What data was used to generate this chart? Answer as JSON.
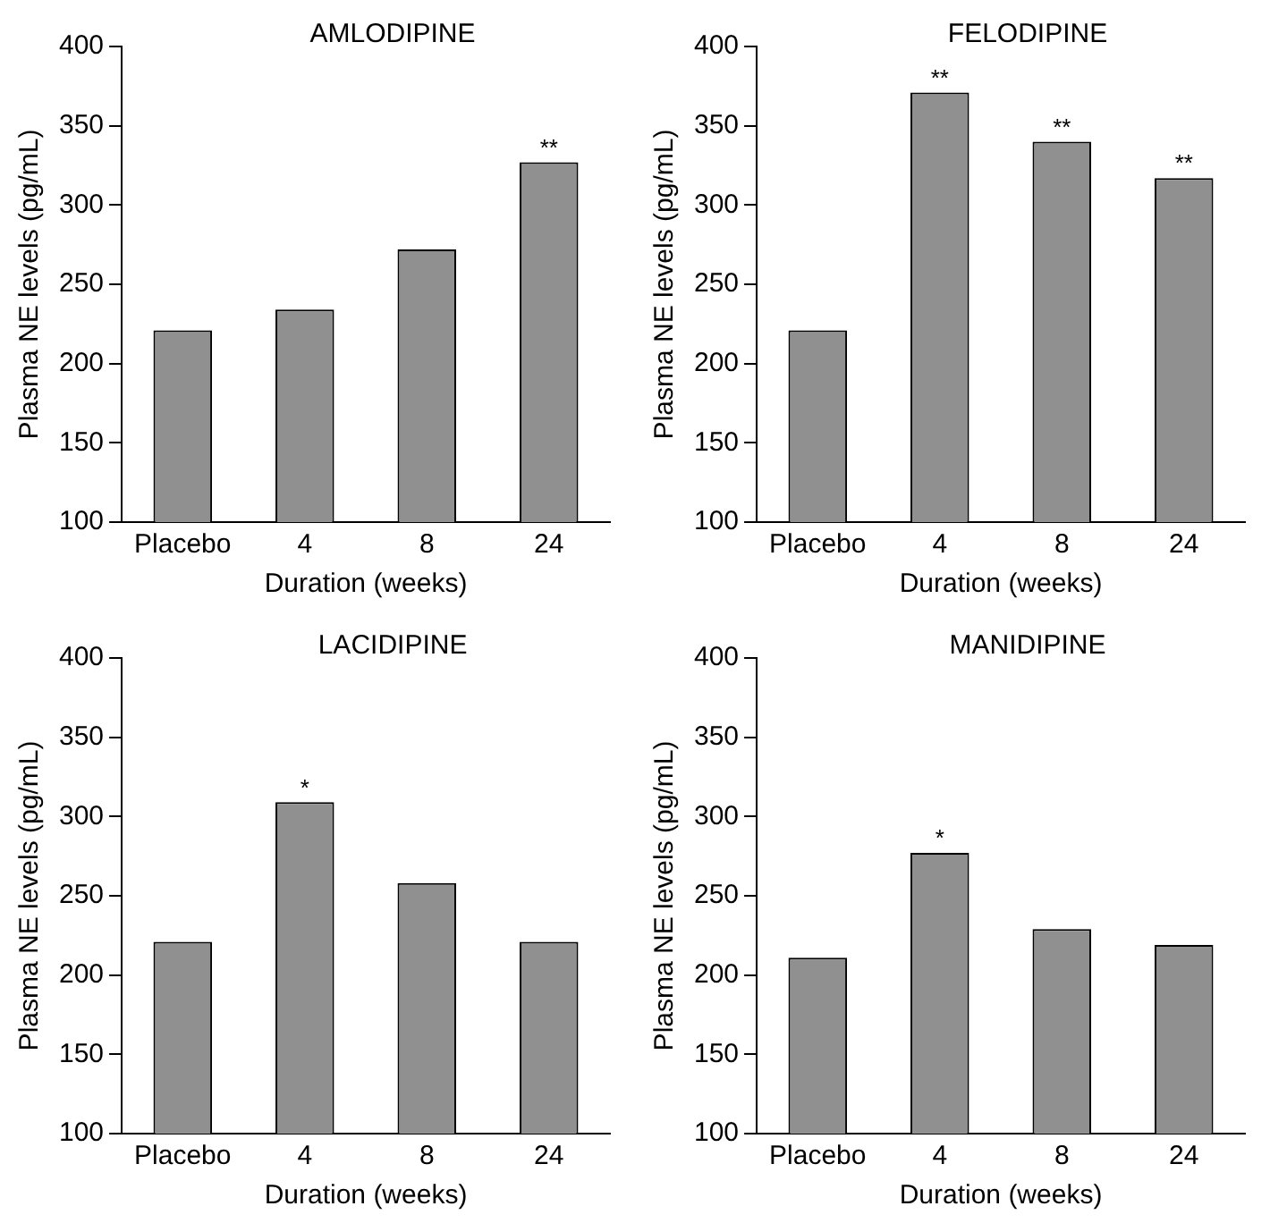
{
  "chart_data": [
    {
      "type": "bar",
      "title": "AMLODIPINE",
      "xlabel": "Duration (weeks)",
      "ylabel": "Plasma NE levels (pg/mL)",
      "categories": [
        "Placebo",
        "4",
        "8",
        "24"
      ],
      "values": [
        221,
        234,
        272,
        327
      ],
      "color": "#909090",
      "ylim": [
        100,
        400
      ],
      "yticks": [
        100,
        150,
        200,
        250,
        300,
        350,
        400
      ],
      "annotations": [
        {
          "text": "**",
          "x": "24",
          "y": 327
        }
      ]
    },
    {
      "type": "bar",
      "title": "FELODIPINE",
      "xlabel": "Duration (weeks)",
      "ylabel": "Plasma NE levels (pg/mL)",
      "categories": [
        "Placebo",
        "4",
        "8",
        "24"
      ],
      "values": [
        221,
        371,
        340,
        317
      ],
      "color": "#909090",
      "ylim": [
        100,
        400
      ],
      "yticks": [
        100,
        150,
        200,
        250,
        300,
        350,
        400
      ],
      "annotations": [
        {
          "text": "**",
          "x": "4",
          "y": 371
        },
        {
          "text": "**",
          "x": "8",
          "y": 340
        },
        {
          "text": "**",
          "x": "24",
          "y": 317
        }
      ]
    },
    {
      "type": "bar",
      "title": "LACIDIPINE",
      "xlabel": "Duration (weeks)",
      "ylabel": "Plasma NE levels (pg/mL)",
      "categories": [
        "Placebo",
        "4",
        "8",
        "24"
      ],
      "values": [
        221,
        309,
        258,
        221
      ],
      "color": "#909090",
      "ylim": [
        100,
        400
      ],
      "yticks": [
        100,
        150,
        200,
        250,
        300,
        350,
        400
      ],
      "annotations": [
        {
          "text": "*",
          "x": "4",
          "y": 309
        }
      ]
    },
    {
      "type": "bar",
      "title": "MANIDIPINE",
      "xlabel": "Duration (weeks)",
      "ylabel": "Plasma NE levels (pg/mL)",
      "categories": [
        "Placebo",
        "4",
        "8",
        "24"
      ],
      "values": [
        211,
        277,
        229,
        219
      ],
      "color": "#909090",
      "ylim": [
        100,
        400
      ],
      "yticks": [
        100,
        150,
        200,
        250,
        300,
        350,
        400
      ],
      "annotations": [
        {
          "text": "*",
          "x": "4",
          "y": 277
        }
      ]
    }
  ]
}
